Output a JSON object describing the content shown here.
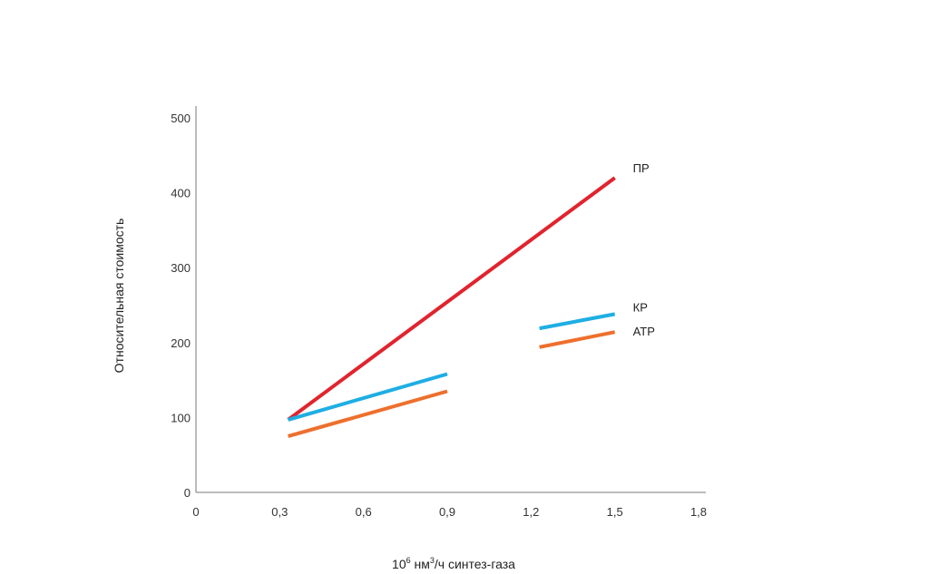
{
  "chart_data": {
    "type": "line",
    "title": "",
    "xlabel": {
      "prefix": "10",
      "exponent": "6",
      "unit_main": " нм",
      "unit_exponent": "3",
      "suffix": "/ч синтез-газа"
    },
    "ylabel": "Относительная стоимость",
    "xlim": [
      0,
      1.8
    ],
    "ylim": [
      0,
      500
    ],
    "x_ticks": [
      {
        "value": 0,
        "label": "0"
      },
      {
        "value": 0.3,
        "label": "0,3"
      },
      {
        "value": 0.6,
        "label": "0,6"
      },
      {
        "value": 0.9,
        "label": "0,9"
      },
      {
        "value": 1.2,
        "label": "1,2"
      },
      {
        "value": 1.5,
        "label": "1,5"
      },
      {
        "value": 1.8,
        "label": "1,8"
      }
    ],
    "y_ticks": [
      {
        "value": 0,
        "label": "0"
      },
      {
        "value": 100,
        "label": "100"
      },
      {
        "value": 200,
        "label": "200"
      },
      {
        "value": 300,
        "label": "300"
      },
      {
        "value": 400,
        "label": "400"
      },
      {
        "value": 500,
        "label": "500"
      }
    ],
    "grid": false,
    "legend": "inline labels at line ends",
    "series": [
      {
        "name": "ПР",
        "color": "#e0242e",
        "segments": [
          [
            {
              "x": 0.33,
              "y": 97
            },
            {
              "x": 1.5,
              "y": 420
            }
          ]
        ]
      },
      {
        "name": "КР",
        "color": "#1eaee4",
        "segments": [
          [
            {
              "x": 0.33,
              "y": 97
            },
            {
              "x": 0.9,
              "y": 158
            }
          ],
          [
            {
              "x": 1.23,
              "y": 219
            },
            {
              "x": 1.5,
              "y": 238
            }
          ]
        ]
      },
      {
        "name": "АТР",
        "color": "#ee6f2d",
        "segments": [
          [
            {
              "x": 0.33,
              "y": 75
            },
            {
              "x": 0.9,
              "y": 135
            }
          ],
          [
            {
              "x": 1.23,
              "y": 194
            },
            {
              "x": 1.5,
              "y": 214
            }
          ]
        ]
      }
    ]
  }
}
